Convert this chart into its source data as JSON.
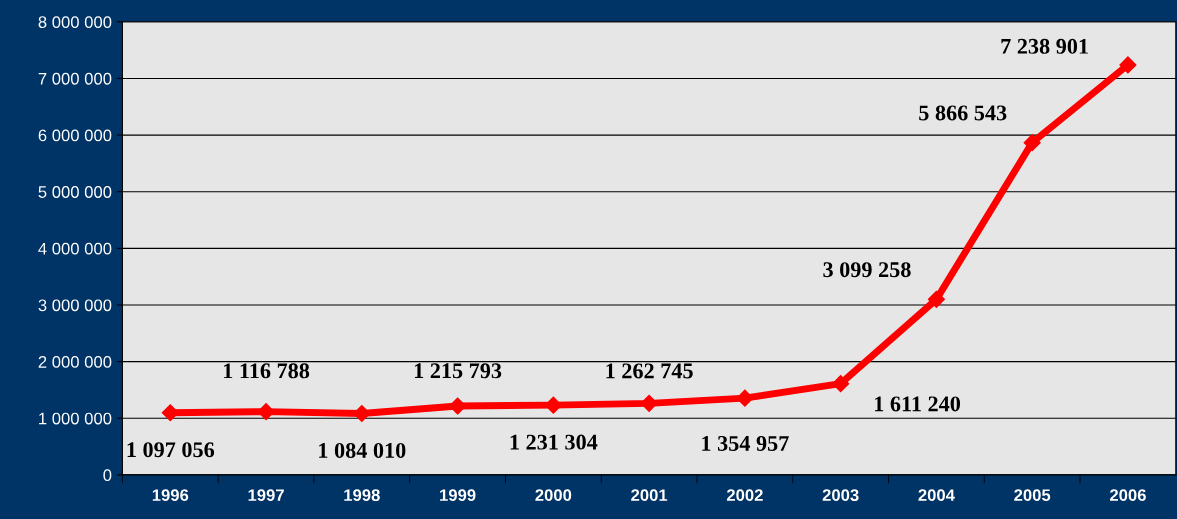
{
  "chart_data": {
    "type": "line",
    "categories": [
      "1996",
      "1997",
      "1998",
      "1999",
      "2000",
      "2001",
      "2002",
      "2003",
      "2004",
      "2005",
      "2006"
    ],
    "series": [
      {
        "color": "#ff0000",
        "values": [
          1097056,
          1116788,
          1084010,
          1215793,
          1231304,
          1262745,
          1354957,
          1611240,
          3099258,
          5866543,
          7238901
        ],
        "value_labels": [
          "1 097 056",
          "1 116 788",
          "1 084 010",
          "1 215 793",
          "1 231 304",
          "1 262 745",
          "1 354 957",
          "1 611 240",
          "3 099 258",
          "5 866 543",
          "7 238 901"
        ]
      }
    ],
    "ylim": [
      0,
      8000000
    ],
    "yticks": [
      {
        "value": 0,
        "label": "0"
      },
      {
        "value": 1000000,
        "label": "1 000 000"
      },
      {
        "value": 2000000,
        "label": "2 000 000"
      },
      {
        "value": 3000000,
        "label": "3 000 000"
      },
      {
        "value": 4000000,
        "label": "4 000 000"
      },
      {
        "value": 5000000,
        "label": "5 000 000"
      },
      {
        "value": 6000000,
        "label": "6 000 000"
      },
      {
        "value": 7000000,
        "label": "7 000 000"
      },
      {
        "value": 8000000,
        "label": "8 000 000"
      }
    ],
    "grid": "y",
    "marker": "diamond",
    "line_style": "solid",
    "legend": false
  }
}
